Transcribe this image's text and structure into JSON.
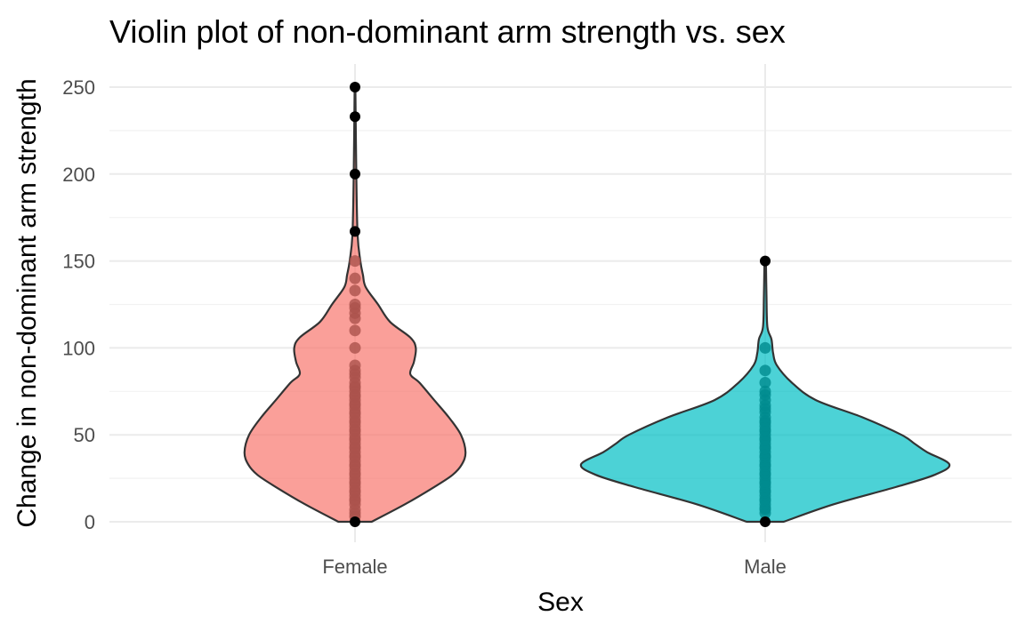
{
  "chart_data": {
    "type": "violin",
    "title": "Violin plot of non-dominant arm strength vs. sex",
    "xlabel": "Sex",
    "ylabel": "Change in non-dominant arm strength",
    "ylim": [
      -5,
      262
    ],
    "yticks": [
      0,
      50,
      100,
      150,
      200,
      250
    ],
    "yminor": [
      25,
      75,
      125,
      175,
      225
    ],
    "grid": true,
    "categories": [
      "Female",
      "Male"
    ],
    "series": [
      {
        "name": "Female",
        "fill": "#F8766D",
        "point_color": "#AB524C",
        "density_profile": [
          [
            0,
            0.09
          ],
          [
            10,
            0.27
          ],
          [
            20,
            0.43
          ],
          [
            27,
            0.53
          ],
          [
            33,
            0.58
          ],
          [
            40,
            0.6
          ],
          [
            50,
            0.575
          ],
          [
            60,
            0.51
          ],
          [
            70,
            0.43
          ],
          [
            80,
            0.35
          ],
          [
            85,
            0.3
          ],
          [
            92,
            0.32
          ],
          [
            100,
            0.33
          ],
          [
            106,
            0.3
          ],
          [
            115,
            0.19
          ],
          [
            125,
            0.125
          ],
          [
            135,
            0.058
          ],
          [
            142,
            0.043
          ],
          [
            150,
            0.029
          ],
          [
            165,
            0.014
          ],
          [
            200,
            0.007
          ],
          [
            250,
            0.002
          ]
        ],
        "points": [
          3,
          5,
          7,
          10,
          12,
          13,
          15,
          17,
          18,
          20,
          22,
          23,
          25,
          27,
          28,
          30,
          32,
          33,
          35,
          37,
          38,
          40,
          42,
          43,
          45,
          47,
          48,
          50,
          52,
          53,
          55,
          57,
          58,
          60,
          62,
          63,
          65,
          67,
          68,
          70,
          72,
          73,
          75,
          77,
          78,
          80,
          83,
          85,
          87,
          90,
          100,
          110,
          117,
          120,
          123,
          125,
          133,
          140,
          150
        ],
        "outliers": [
          0,
          167,
          200,
          233,
          250
        ]
      },
      {
        "name": "Male",
        "fill": "#00BFC4",
        "point_color": "#008B8E",
        "density_profile": [
          [
            0,
            0.1
          ],
          [
            10,
            0.37
          ],
          [
            20,
            0.71
          ],
          [
            27,
            0.92
          ],
          [
            33,
            1.0
          ],
          [
            40,
            0.88
          ],
          [
            45,
            0.81
          ],
          [
            50,
            0.74
          ],
          [
            60,
            0.53
          ],
          [
            70,
            0.275
          ],
          [
            80,
            0.145
          ],
          [
            90,
            0.063
          ],
          [
            97,
            0.043
          ],
          [
            105,
            0.034
          ],
          [
            112,
            0.012
          ],
          [
            130,
            0.007
          ],
          [
            150,
            0.004
          ]
        ],
        "points": [
          5,
          7,
          8,
          10,
          12,
          13,
          15,
          17,
          18,
          20,
          22,
          23,
          25,
          27,
          28,
          30,
          32,
          33,
          35,
          37,
          38,
          40,
          42,
          43,
          45,
          47,
          48,
          50,
          52,
          53,
          55,
          57,
          58,
          60,
          63,
          65,
          67,
          70,
          73,
          75,
          80,
          87,
          100
        ],
        "outliers": [
          0,
          150
        ]
      }
    ]
  }
}
